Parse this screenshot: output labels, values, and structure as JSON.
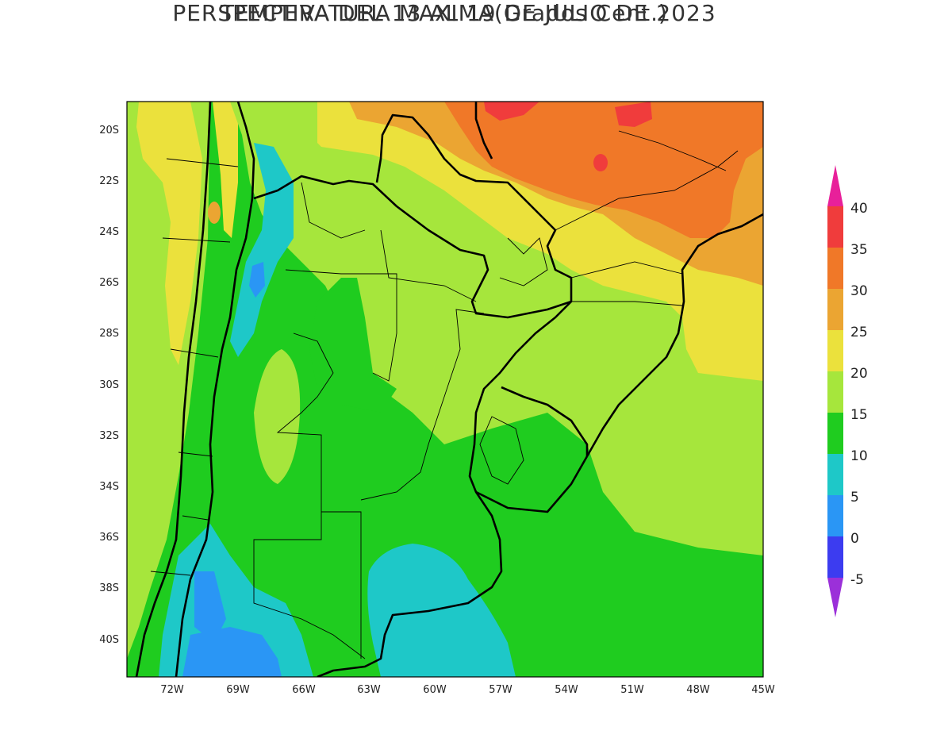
{
  "title": {
    "line1": "PERSPECTIVA DEL 13 AL 19 DE JULIO DE 2023",
    "line2": "TEMPERATURA MAXIMA(Grados Cent.)"
  },
  "axes": {
    "lat_labels": [
      "20S",
      "22S",
      "24S",
      "26S",
      "28S",
      "30S",
      "32S",
      "34S",
      "36S",
      "38S",
      "40S"
    ],
    "lon_labels": [
      "72W",
      "69W",
      "66W",
      "63W",
      "60W",
      "57W",
      "54W",
      "51W",
      "48W",
      "45W"
    ],
    "lat_range": [
      -41.5,
      -19
    ],
    "lon_range": [
      -73.8,
      -45
    ]
  },
  "colorbar": {
    "labels": [
      "-5",
      "0",
      "5",
      "10",
      "15",
      "20",
      "25",
      "30",
      "35",
      "40"
    ],
    "bins": [
      {
        "range": "<-5",
        "color": "#9b30d9"
      },
      {
        "range": "-5–0",
        "color": "#3c3cf0"
      },
      {
        "range": "0–5",
        "color": "#2a96f5"
      },
      {
        "range": "5–10",
        "color": "#1ec8c8"
      },
      {
        "range": "10–15",
        "color": "#1fcc1f"
      },
      {
        "range": "15–20",
        "color": "#a6e63c"
      },
      {
        "range": "20–25",
        "color": "#ebe13c"
      },
      {
        "range": "25–30",
        "color": "#eba532"
      },
      {
        "range": "30–35",
        "color": "#f07828"
      },
      {
        "range": "35–40",
        "color": "#f03c3c"
      },
      {
        "range": ">40",
        "color": "#e8209a"
      }
    ]
  }
}
